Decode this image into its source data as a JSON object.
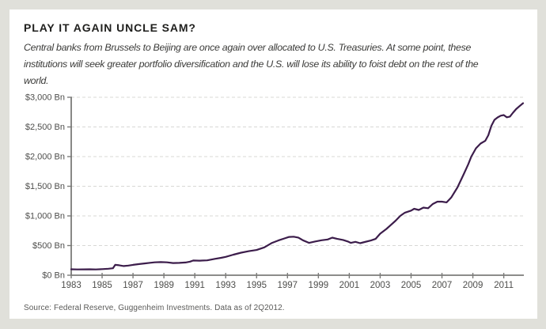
{
  "header": {
    "title": "PLAY IT AGAIN UNCLE SAM?",
    "subtitle": "Central banks from Brussels to Beijing are once again over allocated to U.S. Treasuries. At some point, these institutions will seek greater portfolio diversification and the U.S. will lose its ability to foist debt on the rest of the world."
  },
  "footer": {
    "source": "Source: Federal Reserve, Guggenheim Investments. Data as of 2Q2012."
  },
  "colors": {
    "page_background": "#e0e0da",
    "card_background": "#ffffff",
    "line": "#3c1d4b",
    "grid": "#d8d8d5",
    "axis": "#7b7b79",
    "axis_text": "#4e4e4c"
  },
  "chart_data": {
    "type": "line",
    "title": "PLAY IT AGAIN UNCLE SAM?",
    "xlabel": "",
    "ylabel": "",
    "xlim": [
      1983,
      2012.3
    ],
    "ylim": [
      0,
      3000
    ],
    "grid": "horizontal-dashed",
    "legend": "none",
    "x_ticks": [
      1983,
      1985,
      1987,
      1989,
      1991,
      1993,
      1995,
      1997,
      1999,
      2001,
      2003,
      2005,
      2007,
      2009,
      2011
    ],
    "y_ticks": [
      {
        "value": 0,
        "label": "$0 Bn"
      },
      {
        "value": 500,
        "label": "$500 Bn"
      },
      {
        "value": 1000,
        "label": "$1,000 Bn"
      },
      {
        "value": 1500,
        "label": "$1,500 Bn"
      },
      {
        "value": 2000,
        "label": "$2,000 Bn"
      },
      {
        "value": 2500,
        "label": "$2,500 Bn"
      },
      {
        "value": 3000,
        "label": "$3,000 Bn"
      }
    ],
    "series": [
      {
        "name": "central-bank-holdings-of-us-treasuries-bn",
        "color": "#3c1d4b",
        "points": [
          [
            1983.0,
            100
          ],
          [
            1983.4,
            97
          ],
          [
            1983.8,
            99
          ],
          [
            1984.2,
            100
          ],
          [
            1984.6,
            97
          ],
          [
            1985.0,
            103
          ],
          [
            1985.4,
            110
          ],
          [
            1985.7,
            118
          ],
          [
            1985.85,
            175
          ],
          [
            1986.1,
            168
          ],
          [
            1986.4,
            155
          ],
          [
            1986.7,
            163
          ],
          [
            1987.0,
            175
          ],
          [
            1987.4,
            188
          ],
          [
            1987.8,
            200
          ],
          [
            1988.1,
            210
          ],
          [
            1988.4,
            218
          ],
          [
            1988.8,
            221
          ],
          [
            1989.2,
            218
          ],
          [
            1989.6,
            205
          ],
          [
            1990.0,
            208
          ],
          [
            1990.4,
            214
          ],
          [
            1990.7,
            230
          ],
          [
            1990.9,
            248
          ],
          [
            1991.3,
            246
          ],
          [
            1991.8,
            251
          ],
          [
            1992.3,
            276
          ],
          [
            1992.7,
            293
          ],
          [
            1993.0,
            310
          ],
          [
            1993.5,
            347
          ],
          [
            1994.0,
            380
          ],
          [
            1994.5,
            405
          ],
          [
            1995.0,
            425
          ],
          [
            1995.5,
            470
          ],
          [
            1996.0,
            545
          ],
          [
            1996.4,
            585
          ],
          [
            1996.8,
            620
          ],
          [
            1997.1,
            645
          ],
          [
            1997.4,
            650
          ],
          [
            1997.7,
            635
          ],
          [
            1998.0,
            590
          ],
          [
            1998.4,
            545
          ],
          [
            1998.8,
            570
          ],
          [
            1999.2,
            590
          ],
          [
            1999.6,
            602
          ],
          [
            1999.9,
            633
          ],
          [
            2000.2,
            615
          ],
          [
            2000.6,
            595
          ],
          [
            2000.9,
            570
          ],
          [
            2001.1,
            545
          ],
          [
            2001.4,
            562
          ],
          [
            2001.7,
            540
          ],
          [
            2002.0,
            560
          ],
          [
            2002.4,
            585
          ],
          [
            2002.7,
            612
          ],
          [
            2003.0,
            700
          ],
          [
            2003.4,
            780
          ],
          [
            2003.7,
            850
          ],
          [
            2004.0,
            920
          ],
          [
            2004.3,
            1000
          ],
          [
            2004.6,
            1055
          ],
          [
            2005.0,
            1090
          ],
          [
            2005.2,
            1120
          ],
          [
            2005.5,
            1100
          ],
          [
            2005.8,
            1140
          ],
          [
            2006.1,
            1130
          ],
          [
            2006.4,
            1200
          ],
          [
            2006.7,
            1240
          ],
          [
            2007.0,
            1240
          ],
          [
            2007.3,
            1228
          ],
          [
            2007.6,
            1310
          ],
          [
            2008.0,
            1480
          ],
          [
            2008.4,
            1700
          ],
          [
            2008.7,
            1870
          ],
          [
            2008.9,
            2000
          ],
          [
            2009.2,
            2140
          ],
          [
            2009.5,
            2220
          ],
          [
            2009.8,
            2265
          ],
          [
            2010.0,
            2360
          ],
          [
            2010.2,
            2520
          ],
          [
            2010.4,
            2620
          ],
          [
            2010.6,
            2660
          ],
          [
            2010.8,
            2690
          ],
          [
            2011.0,
            2700
          ],
          [
            2011.2,
            2662
          ],
          [
            2011.4,
            2675
          ],
          [
            2011.6,
            2740
          ],
          [
            2011.8,
            2800
          ],
          [
            2012.0,
            2845
          ],
          [
            2012.25,
            2900
          ]
        ]
      }
    ]
  }
}
